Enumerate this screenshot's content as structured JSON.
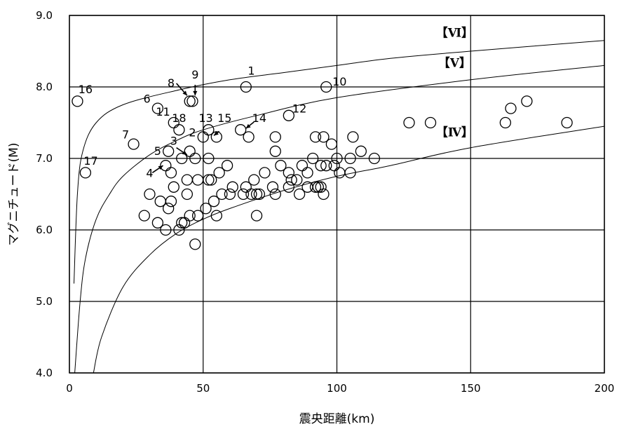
{
  "chart_data": {
    "type": "scatter",
    "title": "",
    "xlabel": "震央距離(km)",
    "ylabel": "マグニチュード(M)",
    "xlim": [
      0,
      200
    ],
    "ylim": [
      4.0,
      9.0
    ],
    "x_ticks": [
      0,
      50,
      100,
      150,
      200
    ],
    "x_tick_labels": [
      "0",
      "50",
      "100",
      "150",
      "200"
    ],
    "y_ticks": [
      4.0,
      5.0,
      6.0,
      7.0,
      8.0,
      9.0
    ],
    "y_tick_labels": [
      "4.0",
      "5.0",
      "6.0",
      "7.0",
      "8.0",
      "9.0"
    ],
    "grid": true,
    "marker": "open-circle",
    "points": [
      [
        3,
        7.8
      ],
      [
        6,
        6.8
      ],
      [
        24,
        7.2
      ],
      [
        33,
        7.7
      ],
      [
        39,
        7.5
      ],
      [
        41,
        7.4
      ],
      [
        45,
        7.8
      ],
      [
        46,
        7.8
      ],
      [
        52,
        7.4
      ],
      [
        55,
        7.3
      ],
      [
        50,
        7.3
      ],
      [
        64,
        7.4
      ],
      [
        66,
        8.0
      ],
      [
        67,
        7.3
      ],
      [
        82,
        7.6
      ],
      [
        96,
        8.0
      ],
      [
        77,
        7.3
      ],
      [
        92,
        7.3
      ],
      [
        95,
        7.3
      ],
      [
        98,
        7.2
      ],
      [
        106,
        7.3
      ],
      [
        127,
        7.5
      ],
      [
        135,
        7.5
      ],
      [
        163,
        7.5
      ],
      [
        165,
        7.7
      ],
      [
        171,
        7.8
      ],
      [
        186,
        7.5
      ],
      [
        37,
        7.1
      ],
      [
        42,
        7.0
      ],
      [
        45,
        7.1
      ],
      [
        47,
        7.0
      ],
      [
        52,
        7.0
      ],
      [
        36,
        6.9
      ],
      [
        38,
        6.8
      ],
      [
        30,
        6.5
      ],
      [
        34,
        6.4
      ],
      [
        28,
        6.2
      ],
      [
        33,
        6.1
      ],
      [
        36,
        6.0
      ],
      [
        37,
        6.3
      ],
      [
        38,
        6.4
      ],
      [
        39,
        6.6
      ],
      [
        41,
        6.0
      ],
      [
        42,
        6.1
      ],
      [
        43,
        6.1
      ],
      [
        44,
        6.5
      ],
      [
        44,
        6.7
      ],
      [
        45,
        6.2
      ],
      [
        47,
        5.8
      ],
      [
        48,
        6.2
      ],
      [
        48,
        6.7
      ],
      [
        51,
        6.3
      ],
      [
        52,
        6.7
      ],
      [
        53,
        6.7
      ],
      [
        54,
        6.4
      ],
      [
        55,
        6.2
      ],
      [
        56,
        6.8
      ],
      [
        57,
        6.5
      ],
      [
        59,
        6.9
      ],
      [
        60,
        6.5
      ],
      [
        61,
        6.6
      ],
      [
        65,
        6.5
      ],
      [
        66,
        6.6
      ],
      [
        68,
        6.5
      ],
      [
        69,
        6.7
      ],
      [
        70,
        6.5
      ],
      [
        70,
        6.2
      ],
      [
        71,
        6.5
      ],
      [
        73,
        6.8
      ],
      [
        76,
        6.6
      ],
      [
        77,
        7.1
      ],
      [
        77,
        6.5
      ],
      [
        79,
        6.9
      ],
      [
        82,
        6.6
      ],
      [
        82,
        6.8
      ],
      [
        83,
        6.7
      ],
      [
        85,
        6.7
      ],
      [
        86,
        6.5
      ],
      [
        87,
        6.9
      ],
      [
        89,
        6.8
      ],
      [
        89,
        6.6
      ],
      [
        91,
        7.0
      ],
      [
        92,
        6.6
      ],
      [
        93,
        6.6
      ],
      [
        94,
        6.6
      ],
      [
        94,
        6.9
      ],
      [
        95,
        6.5
      ],
      [
        96,
        6.9
      ],
      [
        99,
        6.9
      ],
      [
        100,
        7.0
      ],
      [
        101,
        6.8
      ],
      [
        105,
        7.0
      ],
      [
        105,
        6.8
      ],
      [
        109,
        7.1
      ],
      [
        114,
        7.0
      ]
    ],
    "curves": [
      {
        "name": "【Ⅵ】",
        "points": [
          [
            1.7,
            5.25
          ],
          [
            3,
            6.5
          ],
          [
            5,
            7.1
          ],
          [
            10,
            7.5
          ],
          [
            20,
            7.75
          ],
          [
            40,
            7.95
          ],
          [
            60,
            8.1
          ],
          [
            80,
            8.2
          ],
          [
            100,
            8.3
          ],
          [
            120,
            8.4
          ],
          [
            150,
            8.5
          ],
          [
            200,
            8.65
          ]
        ]
      },
      {
        "name": "【Ⅴ】",
        "points": [
          [
            2,
            4.0
          ],
          [
            4,
            5.0
          ],
          [
            6,
            5.6
          ],
          [
            10,
            6.15
          ],
          [
            15,
            6.5
          ],
          [
            20,
            6.75
          ],
          [
            30,
            7.05
          ],
          [
            40,
            7.25
          ],
          [
            50,
            7.4
          ],
          [
            70,
            7.6
          ],
          [
            100,
            7.85
          ],
          [
            150,
            8.1
          ],
          [
            200,
            8.3
          ]
        ]
      },
      {
        "name": "【Ⅳ】",
        "points": [
          [
            9,
            4.0
          ],
          [
            12,
            4.5
          ],
          [
            20,
            5.2
          ],
          [
            30,
            5.65
          ],
          [
            40,
            5.95
          ],
          [
            50,
            6.15
          ],
          [
            60,
            6.3
          ],
          [
            80,
            6.55
          ],
          [
            100,
            6.75
          ],
          [
            120,
            6.9
          ],
          [
            150,
            7.15
          ],
          [
            200,
            7.45
          ]
        ]
      }
    ],
    "curve_labels": [
      {
        "text": "【Ⅵ】",
        "x": 144,
        "y": 8.7
      },
      {
        "text": "【Ⅴ】",
        "x": 144,
        "y": 8.28
      },
      {
        "text": "【Ⅳ】",
        "x": 144,
        "y": 7.31
      }
    ],
    "annotations": [
      {
        "text": "1",
        "x": 68,
        "y": 8.17
      },
      {
        "text": "2",
        "x": 46,
        "y": 7.31
      },
      {
        "text": "3",
        "x": 39,
        "y": 7.19
      },
      {
        "text": "4",
        "x": 30,
        "y": 6.74
      },
      {
        "text": "5",
        "x": 33,
        "y": 7.05
      },
      {
        "text": "6",
        "x": 29,
        "y": 7.78
      },
      {
        "text": "7",
        "x": 21,
        "y": 7.28
      },
      {
        "text": "8",
        "x": 38,
        "y": 8.0
      },
      {
        "text": "9",
        "x": 47,
        "y": 8.12
      },
      {
        "text": "10",
        "x": 101,
        "y": 8.02
      },
      {
        "text": "11",
        "x": 35,
        "y": 7.6
      },
      {
        "text": "12",
        "x": 86,
        "y": 7.64
      },
      {
        "text": "13",
        "x": 51,
        "y": 7.51
      },
      {
        "text": "14",
        "x": 71,
        "y": 7.51
      },
      {
        "text": "15",
        "x": 58,
        "y": 7.51
      },
      {
        "text": "16",
        "x": 6,
        "y": 7.91
      },
      {
        "text": "17",
        "x": 8,
        "y": 6.91
      },
      {
        "text": "18",
        "x": 41,
        "y": 7.51
      }
    ],
    "arrows": [
      {
        "from": [
          40,
          8.05
        ],
        "to": [
          44,
          7.88
        ]
      },
      {
        "from": [
          47,
          8.03
        ],
        "to": [
          47,
          7.88
        ]
      },
      {
        "from": [
          40,
          7.15
        ],
        "to": [
          44,
          7.05
        ]
      },
      {
        "from": [
          31,
          6.8
        ],
        "to": [
          35,
          6.9
        ]
      },
      {
        "from": [
          56,
          7.38
        ],
        "to": [
          54,
          7.32
        ]
      },
      {
        "from": [
          69,
          7.51
        ],
        "to": [
          66,
          7.42
        ]
      }
    ]
  }
}
